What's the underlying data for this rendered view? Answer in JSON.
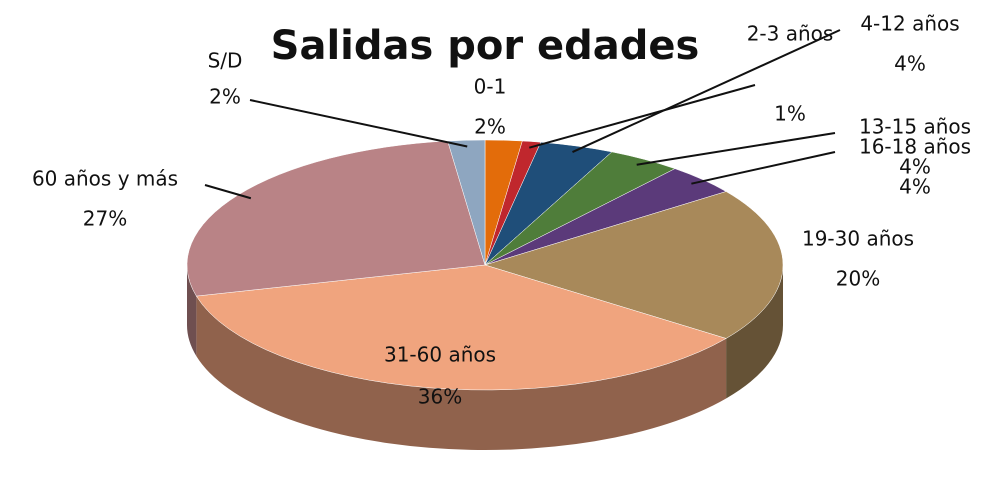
{
  "chart_data": {
    "type": "pie",
    "title": "Salidas por edades",
    "categories": [
      "0-1",
      "2-3 años",
      "4-12 años",
      "13-15 años",
      "16-18 años",
      "19-30 años",
      "31-60 años",
      "60 años y más",
      "S/D"
    ],
    "values": [
      2,
      1,
      4,
      4,
      4,
      20,
      36,
      27,
      2
    ],
    "value_labels": [
      "2%",
      "1%",
      "4%",
      "4%",
      "4%",
      "20%",
      "36%",
      "27%",
      "2%"
    ],
    "colors": [
      "#e36c0a",
      "#c0272d",
      "#1f4e79",
      "#4f7d3a",
      "#5b3a7a",
      "#a8895a",
      "#f0a47e",
      "#b98386",
      "#8ea6c0"
    ]
  }
}
